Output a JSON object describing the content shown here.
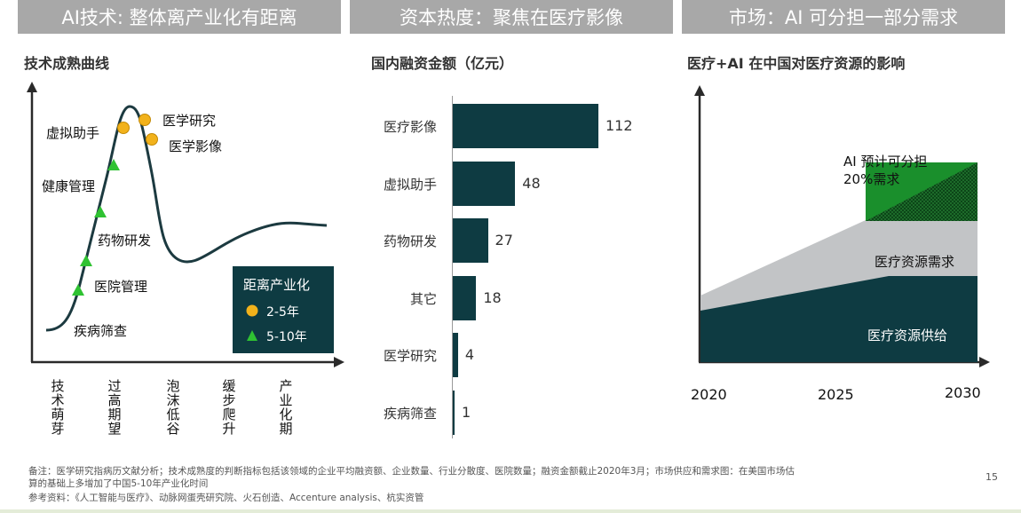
{
  "headers": {
    "panel1": "AI技术: 整体离产业化有距离",
    "panel2": "资本热度：聚焦在医疗影像",
    "panel3": "市场：AI 可分担一部分需求"
  },
  "hype": {
    "subtitle": "技术成熟曲线",
    "labels": {
      "virtual": "虚拟助手",
      "research": "医学研究",
      "imaging": "医学影像",
      "health": "健康管理",
      "drug": "药物研发",
      "hospital": "医院管理",
      "screening": "疾病筛查"
    },
    "phases": [
      "技术萌芽",
      "过高期望",
      "泡沫低谷",
      "缓步爬升",
      "产业化期"
    ],
    "legend": {
      "title": "距离产业化",
      "item1": "2-5年",
      "item2": "5-10年"
    },
    "colors": {
      "circle": "#f2b21b",
      "triangle": "#2fc232"
    }
  },
  "funding": {
    "subtitle": "国内融资金额（亿元）",
    "chart_data": {
      "type": "bar",
      "orientation": "horizontal",
      "title": "国内融资金额（亿元）",
      "categories": [
        "医疗影像",
        "虚拟助手",
        "药物研发",
        "其它",
        "医学研究",
        "疾病筛查"
      ],
      "values": [
        112,
        48,
        27,
        18,
        4,
        1
      ]
    },
    "color": "#0e3b42"
  },
  "market": {
    "subtitle": "医疗+AI 在中国对医疗资源的影响",
    "labels": {
      "ai": "AI 预计可分担\n20%需求",
      "demand": "医疗资源需求",
      "supply": "医疗资源供给"
    },
    "years": [
      "2020",
      "2025",
      "2030"
    ]
  },
  "footer": {
    "note1": "备注：医学研究指病历文献分析；技术成熟度的判断指标包括该领域的企业平均融资额、企业数量、行业分散度、医院数量；融资金额截止2020年3月；市场供应和需求图：在美国市场估",
    "note2": "算的基础上多增加了中国5-10年产业化时间",
    "refs": "参考资料：《人工智能与医疗》、动脉网蛋壳研究院、火石创造、Accenture analysis、杭实资管",
    "page": "15"
  }
}
